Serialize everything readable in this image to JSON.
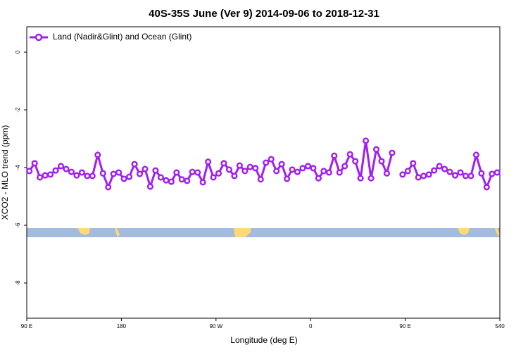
{
  "chart_data": {
    "type": "line",
    "title": "40S-35S June (Ver 9)   2014-09-06 to 2018-12-31",
    "xlabel": "Longitude (deg E)",
    "ylabel": "XCO2 - MLO trend (ppm)",
    "xlim": [
      90,
      540
    ],
    "ylim": [
      -9.22,
      0.88
    ],
    "xticks": [
      {
        "value": 90,
        "label": "90 E"
      },
      180,
      {
        "value": 270,
        "label": "90 W"
      },
      {
        "value": 360,
        "label": "0"
      },
      {
        "value": 450,
        "label": "90 E"
      },
      540
    ],
    "xtick_labels_note_free": null,
    "yticks": [
      0,
      -2,
      -4,
      -6,
      -8
    ],
    "legend": "upper left",
    "x": [
      92.5,
      97.5,
      102.5,
      107.5,
      112.5,
      117.5,
      122.5,
      127.5,
      132.5,
      137.5,
      142.5,
      147.5,
      152.5,
      157.5,
      162.5,
      167.5,
      172.5,
      177.5,
      182.5,
      187.5,
      192.5,
      197.5,
      202.5,
      207.5,
      212.5,
      217.5,
      222.5,
      227.5,
      232.5,
      237.5,
      242.5,
      247.5,
      252.5,
      257.5,
      262.5,
      267.5,
      272.5,
      277.5,
      282.5,
      287.5,
      292.5,
      297.5,
      302.5,
      307.5,
      312.5,
      317.5,
      322.5,
      327.5,
      332.5,
      337.5,
      342.5,
      347.5,
      352.5,
      357.5,
      362.5,
      367.5,
      372.5,
      377.5,
      382.5,
      387.5,
      392.5,
      397.5,
      402.5,
      407.5,
      412.5,
      417.5,
      422.5,
      427.5,
      432.5,
      437.5,
      442.5,
      447.5,
      452.5,
      457.5,
      462.5,
      467.5,
      472.5,
      477.5,
      482.5,
      487.5,
      492.5,
      497.5,
      502.5,
      507.5,
      512.5,
      517.5,
      522.5,
      527.5,
      532.5,
      537.5
    ],
    "series": [
      {
        "name": "Land (Nadir&Glint) and Ocean (Glint)",
        "color": "#a020f0",
        "values": [
          -4.12,
          -3.85,
          -4.34,
          -4.27,
          -4.24,
          -4.1,
          -3.95,
          -4.05,
          -4.15,
          -4.27,
          -4.17,
          -4.29,
          -4.29,
          -3.56,
          -4.2,
          -4.68,
          -4.22,
          -4.17,
          -4.39,
          -4.32,
          -3.88,
          -4.22,
          -4.05,
          -4.66,
          -4.1,
          -4.34,
          -4.44,
          -4.49,
          -4.17,
          -4.41,
          -4.46,
          -4.15,
          -4.17,
          -4.51,
          -3.8,
          -4.34,
          -4.2,
          -3.85,
          -4.07,
          -4.29,
          -3.93,
          -4.12,
          -3.98,
          -4.02,
          -4.41,
          -3.83,
          -3.71,
          -4.12,
          -3.88,
          -4.39,
          -4.07,
          -4.15,
          -4.02,
          -3.95,
          -4.02,
          -4.37,
          -4.12,
          -4.17,
          -3.59,
          -4.17,
          -3.95,
          -3.54,
          -3.78,
          -4.37,
          -3.07,
          -4.37,
          -3.37,
          -3.78,
          -4.2,
          -3.49,
          null,
          -4.24,
          -4.12,
          -3.85,
          -4.34,
          -4.29,
          -4.24,
          -4.1,
          -3.95,
          -4.05,
          -4.15,
          -4.27,
          -4.17,
          -4.29,
          -4.29,
          -3.56,
          -4.2,
          -4.68,
          -4.22,
          -4.17
        ]
      }
    ]
  }
}
